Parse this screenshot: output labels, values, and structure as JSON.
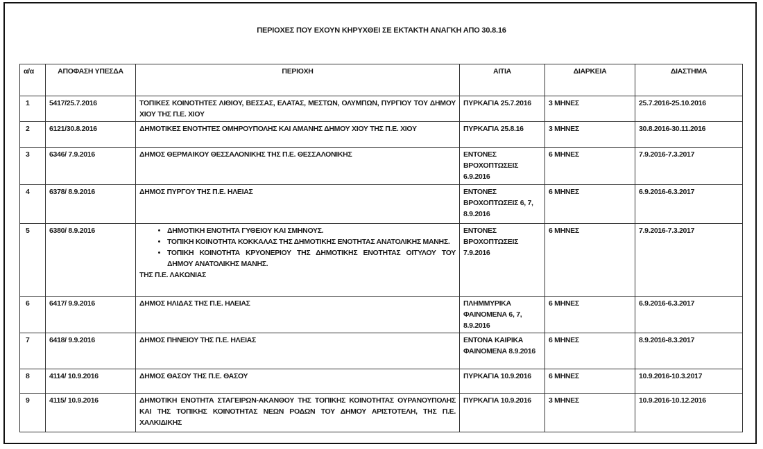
{
  "title": "ΠΕΡΙΟΧΕΣ ΠΟΥ ΕΧΟΥΝ ΚΗΡΥΧΘΕΙ ΣΕ ΕΚΤΑΚΤΗ ΑΝΑΓΚΗ ΑΠΟ 30.8.16",
  "headers": [
    "α/α",
    "ΑΠΟΦΑΣΗ ΥΠΕΣΔΑ",
    "ΠΕΡΙΟΧΗ",
    "ΑΙΤΙΑ",
    "ΔΙΑΡΚΕΙΑ",
    "ΔΙΑΣΤΗΜΑ"
  ],
  "rows": [
    {
      "aa": "1",
      "decision": "5417/25.7.2016",
      "area": "ΤΟΠΙΚΕΣ ΚΟΙΝΟΤΗΤΕΣ ΛΙΘΙΟΥ, ΒΕΣΣΑΣ, ΕΛΑΤΑΣ, ΜΕΣΤΩΝ, ΟΛΥΜΠΩΝ, ΠΥΡΓΙΟΥ ΤΟΥ ΔΗΜΟΥ ΧΙΟΥ ΤΗΣ Π.Ε. ΧΙΟΥ",
      "cause": "ΠΥΡΚΑΓΙΑ 25.7.2016",
      "duration": "3 ΜΗΝΕΣ",
      "period": "25.7.2016-25.10.2016"
    },
    {
      "aa": "2",
      "decision": "6121/30.8.2016",
      "area": "ΔΗΜΟΤΙΚΕΣ ΕΝΟΤΗΤΕΣ ΟΜΗΡΟΥΠΟΛΗΣ ΚΑΙ ΑΜΑΝΗΣ ΔΗΜΟΥ ΧΙΟΥ ΤΗΣ Π.Ε. ΧΙΟΥ",
      "cause": "ΠΥΡΚΑΓΙΑ 25.8.16",
      "duration": "3 ΜΗΝΕΣ",
      "period": "30.8.2016-30.11.2016"
    },
    {
      "aa": "3",
      "decision": "6346/ 7.9.2016",
      "area": "ΔΗΜΟΣ ΘΕΡΜΑΙΚΟΥ ΘΕΣΣΑΛΟΝΙΚΗΣ ΤΗΣ Π.Ε. ΘΕΣΣΑΛΟΝΙΚΗΣ",
      "cause": "ΕΝΤΟΝΕΣ ΒΡΟΧΟΠΤΩΣΕΙΣ 6.9.2016",
      "duration": "6 ΜΗΝΕΣ",
      "period": "7.9.2016-7.3.2017"
    },
    {
      "aa": "4",
      "decision": "6378/ 8.9.2016",
      "area": "ΔΗΜΟΣ ΠΥΡΓΟΥ ΤΗΣ Π.Ε. ΗΛΕΙΑΣ",
      "cause": "ΕΝΤΟΝΕΣ ΒΡΟΧΟΠΤΩΣΕΙΣ 6, 7, 8.9.2016",
      "duration": "6 ΜΗΝΕΣ",
      "period": "6.9.2016-6.3.2017"
    },
    {
      "aa": "5",
      "decision": "6380/ 8.9.2016",
      "area_items": [
        "ΔΗΜΟΤΙΚΗ ΕΝΟΤΗΤΑ ΓΥΘΕΙΟΥ ΚΑΙ ΣΜΗΝΟΥΣ.",
        "ΤΟΠΙΚΗ ΚΟΙΝΟΤΗΤΑ ΚΟΚΚΑΛΑΣ ΤΗΣ ΔΗΜΟΤΙΚΗΣ ΕΝΟΤΗΤΑΣ ΑΝΑΤΟΛΙΚΗΣ ΜΑΝΗΣ.",
        "ΤΟΠΙΚΗ ΚΟΙΝΟΤΗΤΑ ΚΡΥΟΝΕΡΙΟΥ ΤΗΣ ΔΗΜΟΤΙΚΗΣ ΕΝΟΤΗΤΑΣ ΟΙΤΥΛΟΥ ΤΟΥ ΔΗΜΟΥ ΑΝΑΤΟΛΙΚΗΣ ΜΑΝΗΣ."
      ],
      "area_suffix": "ΤΗΣ Π.Ε. ΛΑΚΩΝΙΑΣ",
      "cause": "ΕΝΤΟΝΕΣ ΒΡΟΧΟΠΤΩΣΕΙΣ 7.9.2016",
      "duration": "6 ΜΗΝΕΣ",
      "period": "7.9.2016-7.3.2017"
    },
    {
      "aa": "6",
      "decision": "6417/ 9.9.2016",
      "area": "ΔΗΜΟΣ ΗΛΙΔΑΣ ΤΗΣ Π.Ε. ΗΛΕΙΑΣ",
      "cause": "ΠΛΗΜΜΥΡΙΚΑ ΦΑΙΝΟΜΕΝΑ 6, 7, 8.9.2016",
      "duration": "6 ΜΗΝΕΣ",
      "period": "6.9.2016-6.3.2017"
    },
    {
      "aa": "7",
      "decision": "6418/ 9.9.2016",
      "area": "ΔΗΜΟΣ ΠΗΝΕΙΟΥ ΤΗΣ Π.Ε. ΗΛΕΙΑΣ",
      "cause": "ΕΝΤΟΝΑ ΚΑΙΡΙΚΑ ΦΑΙΝΟΜΕΝΑ 8.9.2016",
      "duration": "6 ΜΗΝΕΣ",
      "period": "8.9.2016-8.3.2017"
    },
    {
      "aa": "8",
      "decision": "4114/ 10.9.2016",
      "area": "ΔΗΜΟΣ ΘΑΣΟΥ ΤΗΣ Π.Ε. ΘΑΣΟΥ",
      "cause": "ΠΥΡΚΑΓΙΑ 10.9.2016",
      "duration": "6 ΜΗΝΕΣ",
      "period": "10.9.2016-10.3.2017"
    },
    {
      "aa": "9",
      "decision": "4115/ 10.9.2016",
      "area": "ΔΗΜΟΤΙΚΗ ΕΝΟΤΗΤΑ ΣΤΑΓΕΙΡΩΝ-ΑΚΑΝΘΟΥ ΤΗΣ ΤΟΠΙΚΗΣ ΚΟΙΝΟΤΗΤΑΣ ΟΥΡΑΝΟΥΠΟΛΗΣ ΚΑΙ ΤΗΣ ΤΟΠΙΚΗΣ ΚΟΙΝΟΤΗΤΑΣ ΝΕΩΝ ΡΟΔΩΝ ΤΟΥ ΔΗΜΟΥ ΑΡΙΣΤΟΤΕΛΗ, ΤΗΣ Π.Ε. ΧΑΛΚΙΔΙΚΗΣ",
      "cause": "ΠΥΡΚΑΓΙΑ 10.9.2016",
      "duration": "3 ΜΗΝΕΣ",
      "period": "10.9.2016-10.12.2016"
    }
  ]
}
